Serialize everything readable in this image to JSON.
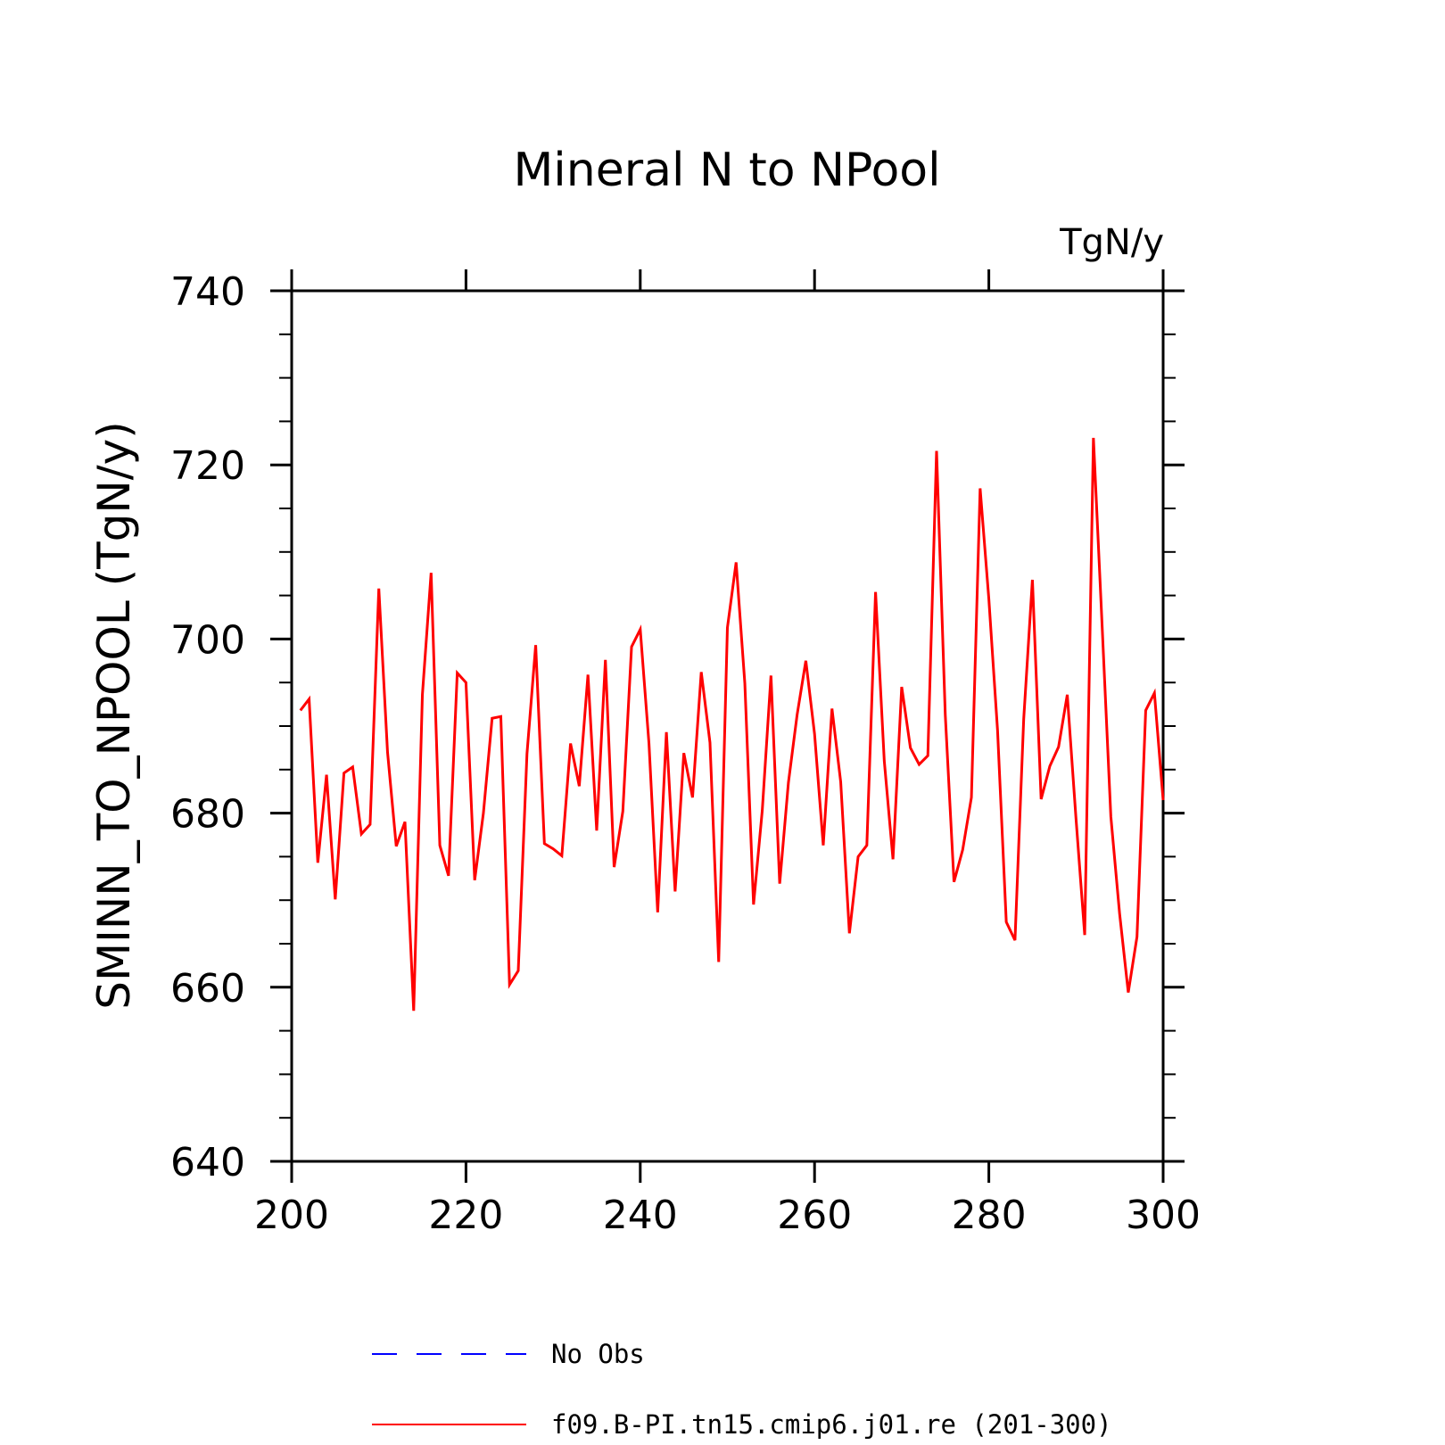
{
  "chart_data": {
    "type": "line",
    "title": "Mineral N to NPool",
    "units_label": "TgN/y",
    "ylabel": "SMINN_TO_NPOOL  (TgN/y)",
    "xlabel": "",
    "xlim": [
      200,
      300
    ],
    "ylim": [
      640,
      740
    ],
    "x_ticks": [
      200,
      220,
      240,
      260,
      280,
      300
    ],
    "x_tick_labels": [
      "200",
      "220",
      "240",
      "260",
      "280",
      "300"
    ],
    "y_ticks": [
      640,
      660,
      680,
      700,
      720,
      740
    ],
    "y_tick_labels": [
      "640",
      "660",
      "680",
      "700",
      "720",
      "740"
    ],
    "y_minor_step": 5,
    "x_start": 201,
    "x_step": 1,
    "grid": false,
    "legend_position": "bottom",
    "series": [
      {
        "name": "No Obs",
        "color": "#0000ff",
        "dash": "dashed",
        "values": []
      },
      {
        "name": "f09.B-PI.tn15.cmip6.j01.re (201-300)",
        "color": "#ff0000",
        "dash": "solid",
        "values": [
          691.8,
          693.1,
          674.3,
          684.4,
          670.1,
          684.6,
          685.3,
          677.6,
          678.7,
          705.8,
          687.0,
          676.2,
          679.0,
          657.3,
          693.6,
          707.6,
          676.3,
          672.8,
          696.1,
          695.0,
          672.3,
          680.0,
          690.9,
          691.1,
          660.3,
          661.9,
          686.8,
          699.3,
          676.5,
          675.9,
          675.1,
          688.0,
          683.1,
          695.9,
          678.0,
          697.6,
          673.8,
          680.2,
          699.1,
          701.1,
          688.0,
          668.6,
          689.3,
          671.0,
          686.9,
          681.8,
          696.2,
          688.1,
          662.9,
          701.3,
          708.8,
          694.9,
          669.5,
          680.3,
          695.8,
          671.9,
          683.5,
          691.3,
          697.5,
          689.1,
          676.3,
          692.0,
          683.6,
          666.2,
          675.0,
          676.3,
          705.4,
          686.0,
          674.7,
          694.5,
          687.5,
          685.6,
          686.6,
          721.6,
          691.3,
          672.1,
          675.8,
          681.8,
          717.3,
          704.6,
          689.5,
          667.5,
          665.4,
          690.8,
          706.8,
          681.6,
          685.4,
          687.6,
          693.6,
          679.4,
          666.0,
          723.1,
          701.5,
          679.6,
          668.5,
          659.4,
          665.8,
          691.8,
          693.8,
          681.5
        ]
      }
    ]
  }
}
